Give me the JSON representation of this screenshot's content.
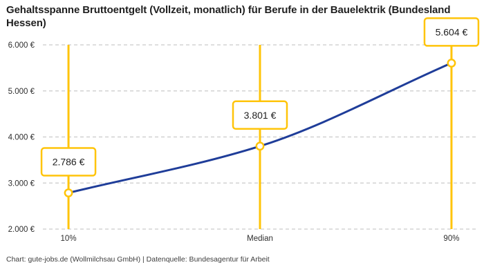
{
  "title": "Gehaltsspanne Bruttoentgelt (Vollzeit, monatlich) für Berufe in der Bauelektrik (Bundesland Hessen)",
  "footer": "Chart: gute-jobs.de (Wollmilchsau GmbH) | Datenquelle: Bundesagentur für Arbeit",
  "chart_data": {
    "type": "line",
    "title": "Gehaltsspanne Bruttoentgelt (Vollzeit, monatlich) für Berufe in der Bauelektrik (Bundesland Hessen)",
    "categories": [
      "10%",
      "Median",
      "90%"
    ],
    "values": [
      2786,
      3801,
      5604
    ],
    "value_labels": [
      "2.786 €",
      "3.801 €",
      "5.604 €"
    ],
    "ylim": [
      2000,
      6000
    ],
    "ytick_values": [
      6000,
      5000,
      4000,
      3000,
      2000
    ],
    "ytick_labels": [
      "6.000 €",
      "5.000 €",
      "4.000 €",
      "3.000 €",
      "2.000 €"
    ],
    "xlabel": "",
    "ylabel": "",
    "grid": "horizontal-dashed",
    "legend": "none",
    "marker": "open-circle",
    "curve": "monotone",
    "annotations": "each percentile has a vertical accent line and a bordered value label box above the data point",
    "colors": {
      "line": "#1F3D99",
      "accent": "#FFC408",
      "grid": "#C9C9C9",
      "label_box_fill": "#FFFFFF",
      "title_text": "#1F1F1F",
      "tick_text": "#2E2E2E"
    }
  }
}
